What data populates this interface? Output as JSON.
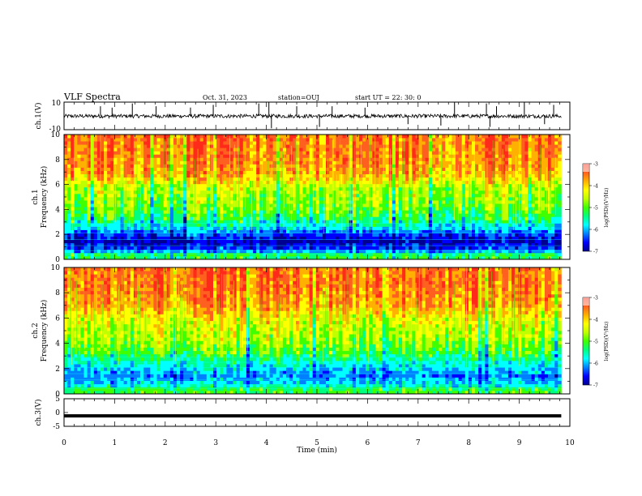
{
  "header": {
    "title": "VLF Spectra",
    "date": "Oct. 31, 2023",
    "station": "station=OUJ",
    "start_ut": "start  UT  =   22: 30: 0"
  },
  "chart_data": [
    {
      "type": "line",
      "panel": "ch1-waveform",
      "ylabel": "ch.1(V)",
      "ylim": [
        -10,
        10
      ],
      "yticks": [
        "10",
        "-10"
      ],
      "x_range_min": [
        0,
        9.83
      ],
      "baseline_v": 0,
      "noise_band_v": [
        -1.5,
        1.2
      ],
      "spikes": [
        {
          "x": 0.72,
          "y": 7
        },
        {
          "x": 0.95,
          "y": 6
        },
        {
          "x": 1.35,
          "y": 9
        },
        {
          "x": 1.82,
          "y": 7
        },
        {
          "x": 2.5,
          "y": 6
        },
        {
          "x": 2.95,
          "y": 8
        },
        {
          "x": 3.85,
          "y": 9
        },
        {
          "x": 4.05,
          "y": 10
        },
        {
          "x": 4.1,
          "y": -9
        },
        {
          "x": 4.6,
          "y": 7
        },
        {
          "x": 5.05,
          "y": -8
        },
        {
          "x": 5.3,
          "y": 7
        },
        {
          "x": 5.95,
          "y": 6
        },
        {
          "x": 6.8,
          "y": -6
        },
        {
          "x": 7.45,
          "y": -7
        },
        {
          "x": 7.72,
          "y": 10
        },
        {
          "x": 8.35,
          "y": 9
        },
        {
          "x": 8.42,
          "y": -8
        },
        {
          "x": 8.55,
          "y": 7
        },
        {
          "x": 9.1,
          "y": 10
        },
        {
          "x": 9.5,
          "y": -6
        },
        {
          "x": 9.68,
          "y": 8
        }
      ]
    },
    {
      "type": "heatmap",
      "panel": "ch1-spectrogram",
      "ylabel_top": "ch.1",
      "ylabel": "Frequency  (kHz)",
      "ylim": [
        0,
        10
      ],
      "yticks": [
        "0",
        "2",
        "4",
        "6",
        "8",
        "10"
      ],
      "x_range_min": [
        0,
        9.83
      ],
      "colorbar": {
        "label": "log(PSD)(V²/Hz)",
        "range": [
          -7,
          -3
        ],
        "ticks": [
          "-3",
          "-4",
          "-5",
          "-6",
          "-7"
        ]
      },
      "freq_profile_khz": [
        0,
        0.3,
        0.8,
        1.5,
        2.2,
        2.6,
        3.2,
        4,
        5,
        5.8,
        6.4,
        7,
        8.5,
        10
      ],
      "log_psd_profile": [
        -5.4,
        -5.0,
        -6.3,
        -6.7,
        -6.1,
        -5.7,
        -5.3,
        -4.9,
        -4.7,
        -4.6,
        -4.1,
        -3.8,
        -3.6,
        -3.6
      ]
    },
    {
      "type": "heatmap",
      "panel": "ch2-spectrogram",
      "ylabel_top": "ch.2",
      "ylabel": "Frequency  (kHz)",
      "ylim": [
        0,
        10
      ],
      "yticks": [
        "0",
        "2",
        "4",
        "6",
        "8",
        "10"
      ],
      "x_range_min": [
        0,
        9.83
      ],
      "colorbar": {
        "label": "log(PSD)(V²/Hz)",
        "range": [
          -7,
          -3
        ],
        "ticks": [
          "-3",
          "-4",
          "-5",
          "-6",
          "-7"
        ]
      },
      "freq_profile_khz": [
        0,
        0.3,
        0.8,
        1.5,
        2.2,
        2.8,
        3.4,
        4.2,
        5.2,
        6,
        7,
        8.5,
        10
      ],
      "log_psd_profile": [
        -5.1,
        -5.0,
        -5.8,
        -6.1,
        -5.7,
        -5.4,
        -5.0,
        -4.7,
        -4.5,
        -4.3,
        -3.8,
        -3.6,
        -3.6
      ]
    },
    {
      "type": "line",
      "panel": "ch3-waveform",
      "ylabel": "ch.3(V)",
      "ylim": [
        -5,
        5
      ],
      "yticks": [
        "5",
        "0",
        "-5"
      ],
      "x_range_min": [
        0,
        9.83
      ],
      "level_v": -1.2,
      "xlabel": "Time  (min)",
      "xlim": [
        0,
        10
      ],
      "xticks": [
        "0",
        "1",
        "2",
        "3",
        "4",
        "5",
        "6",
        "7",
        "8",
        "9",
        "10"
      ]
    }
  ],
  "colors": {
    "scale": [
      "#000090",
      "#0000ff",
      "#0080ff",
      "#00ffff",
      "#00ff80",
      "#40ff00",
      "#c0ff00",
      "#ffff00",
      "#ffb000",
      "#ff6020",
      "#ff2a1a"
    ],
    "line": "#000000"
  }
}
